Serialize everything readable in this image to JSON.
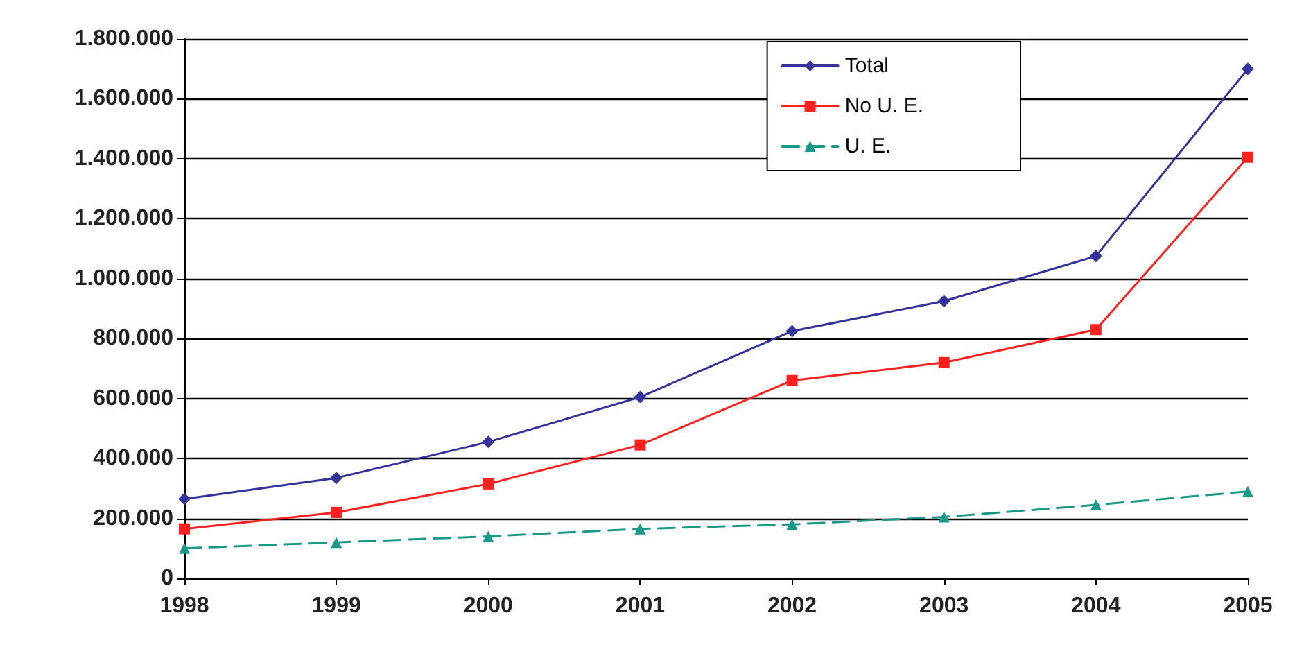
{
  "chart_data": {
    "type": "line",
    "x": [
      1998,
      1999,
      2000,
      2001,
      2002,
      2003,
      2004,
      2005
    ],
    "xlim": [
      1998,
      2005
    ],
    "xticks": [
      1998,
      1999,
      2000,
      2001,
      2002,
      2003,
      2004,
      2005
    ],
    "ylim": [
      0,
      1800000
    ],
    "yticks": [
      {
        "value": 0,
        "label": "0"
      },
      {
        "value": 200000,
        "label": "200.000"
      },
      {
        "value": 400000,
        "label": "400.000"
      },
      {
        "value": 600000,
        "label": "600.000"
      },
      {
        "value": 800000,
        "label": "800.000"
      },
      {
        "value": 1000000,
        "label": "1.000.000"
      },
      {
        "value": 1200000,
        "label": "1.200.000"
      },
      {
        "value": 1400000,
        "label": "1.400.000"
      },
      {
        "value": 1600000,
        "label": "1.600.000"
      },
      {
        "value": 1800000,
        "label": "1.800.000"
      }
    ],
    "grid": "y",
    "legend": "top right",
    "series": [
      {
        "name": "Total",
        "color": "#333399",
        "marker": "diamond",
        "line_style": "solid",
        "values": [
          265000,
          335000,
          455000,
          605000,
          825000,
          925000,
          1075000,
          1700000
        ]
      },
      {
        "name": "No U. E.",
        "color": "#ff2020",
        "marker": "square",
        "line_style": "solid",
        "values": [
          165000,
          220000,
          315000,
          445000,
          660000,
          720000,
          830000,
          1405000
        ]
      },
      {
        "name": "U. E.",
        "color": "#1a9988",
        "marker": "triangle",
        "line_style": "dashed",
        "values": [
          100000,
          120000,
          140000,
          165000,
          180000,
          205000,
          245000,
          290000
        ]
      }
    ]
  }
}
